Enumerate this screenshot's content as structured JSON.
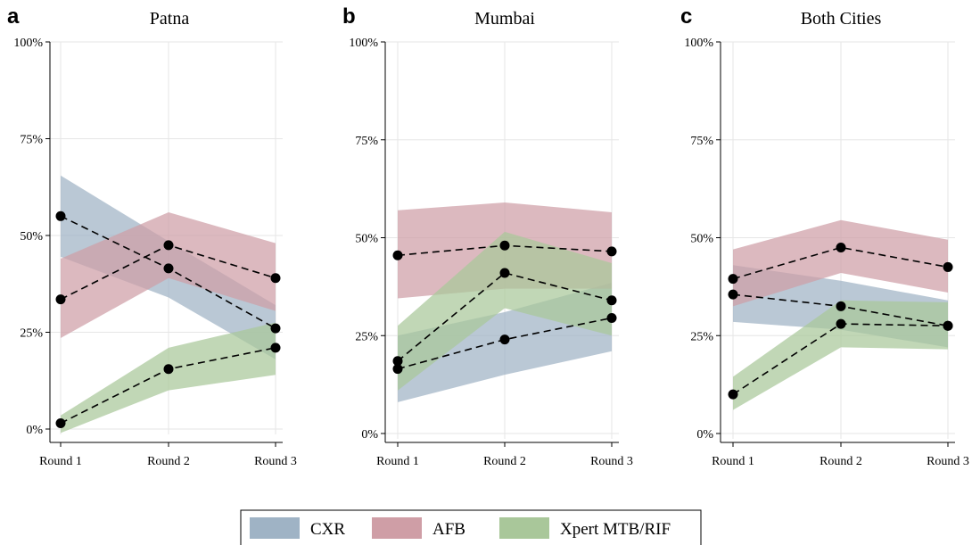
{
  "colors": {
    "CXR": "#9fb3c5",
    "AFB": "#cf9ea6",
    "Xpert": "#a9c79a"
  },
  "legend": {
    "items": [
      {
        "label": "CXR",
        "color": "#9fb3c5"
      },
      {
        "label": "AFB",
        "color": "#cf9ea6"
      },
      {
        "label": "Xpert MTB/RIF",
        "color": "#a9c79a"
      }
    ]
  },
  "chart_data": [
    {
      "type": "line",
      "letter": "a",
      "title": "Patna",
      "categories": [
        "Round 1",
        "Round 2",
        "Round 3"
      ],
      "ylim": [
        0,
        100
      ],
      "yticks": [
        "0%",
        "25%",
        "50%",
        "75%",
        "100%"
      ],
      "grid": true,
      "series": [
        {
          "name": "CXR",
          "values": [
            55,
            41.5,
            26
          ],
          "lower": [
            44.5,
            34,
            18
          ],
          "upper": [
            65.5,
            48.5,
            32
          ],
          "color": "#9fb3c5"
        },
        {
          "name": "AFB",
          "values": [
            33.5,
            47.5,
            39
          ],
          "lower": [
            23.5,
            39,
            30.5
          ],
          "upper": [
            44,
            56,
            48
          ],
          "color": "#cf9ea6"
        },
        {
          "name": "Xpert MTB/RIF",
          "values": [
            1.5,
            15.5,
            21
          ],
          "lower": [
            -1,
            10,
            14
          ],
          "upper": [
            3.5,
            21,
            27.5
          ],
          "color": "#a9c79a"
        }
      ]
    },
    {
      "type": "line",
      "letter": "b",
      "title": "Mumbai",
      "categories": [
        "Round 1",
        "Round 2",
        "Round 3"
      ],
      "ylim": [
        0,
        100
      ],
      "yticks": [
        "0%",
        "25%",
        "50%",
        "75%",
        "100%"
      ],
      "grid": true,
      "series": [
        {
          "name": "CXR",
          "values": [
            16.5,
            24,
            29.5
          ],
          "lower": [
            8,
            15,
            21
          ],
          "upper": [
            25,
            31,
            38.5
          ],
          "color": "#9fb3c5"
        },
        {
          "name": "AFB",
          "values": [
            45.5,
            48,
            46.5
          ],
          "lower": [
            34.5,
            37,
            37
          ],
          "upper": [
            57,
            59,
            56.5
          ],
          "color": "#cf9ea6"
        },
        {
          "name": "Xpert MTB/RIF",
          "values": [
            18.5,
            41,
            34
          ],
          "lower": [
            11,
            32,
            25
          ],
          "upper": [
            27.5,
            51.5,
            43.5
          ],
          "color": "#a9c79a"
        }
      ]
    },
    {
      "type": "line",
      "letter": "c",
      "title": "Both Cities",
      "categories": [
        "Round 1",
        "Round 2",
        "Round 3"
      ],
      "ylim": [
        0,
        100
      ],
      "yticks": [
        "0%",
        "25%",
        "50%",
        "75%",
        "100%"
      ],
      "grid": true,
      "series": [
        {
          "name": "CXR",
          "values": [
            35.5,
            32.5,
            27.5
          ],
          "lower": [
            28.5,
            26.5,
            22
          ],
          "upper": [
            43,
            39,
            34
          ],
          "color": "#9fb3c5"
        },
        {
          "name": "AFB",
          "values": [
            39.5,
            47.5,
            42.5
          ],
          "lower": [
            32.5,
            41,
            36
          ],
          "upper": [
            47,
            54.5,
            49.5
          ],
          "color": "#cf9ea6"
        },
        {
          "name": "Xpert MTB/RIF",
          "values": [
            10,
            28,
            27.5
          ],
          "lower": [
            6,
            22,
            21.5
          ],
          "upper": [
            14.5,
            34,
            33.5
          ],
          "color": "#a9c79a"
        }
      ]
    }
  ]
}
